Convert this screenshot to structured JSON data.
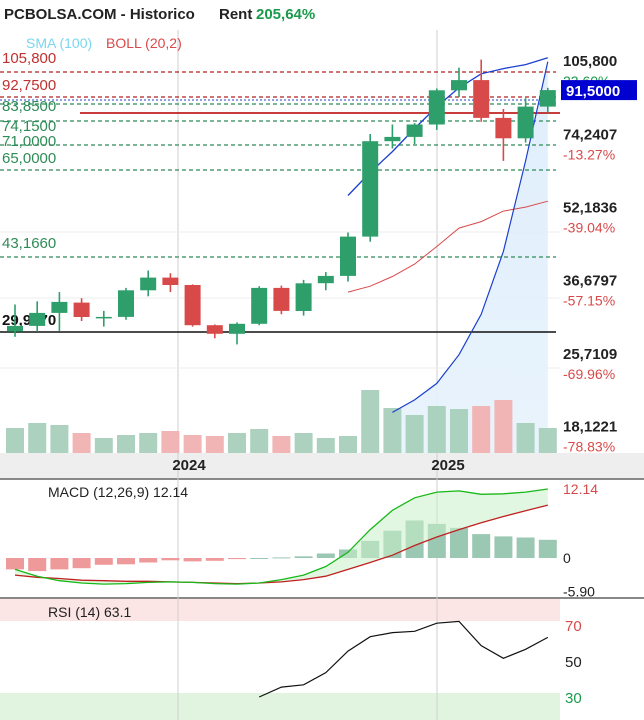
{
  "header": {
    "site": "PCBOLSA.COM - Historico",
    "rent_label": "Rent",
    "rent_value": "205,64%"
  },
  "legend": {
    "sma": "SMA (100)",
    "boll": "BOLL (20,2)"
  },
  "colors": {
    "up": "#2e9e6a",
    "down": "#d84a4a",
    "sma": "#1a3fd0",
    "boll": "#d84a4a",
    "macd_line": "#18b818",
    "signal_line": "#c02020",
    "green_text": "#1a9a4a",
    "red_text": "#d84a4a",
    "price_badge": "#0000d0"
  },
  "price_axis": {
    "labels": [
      "105,800",
      "74,2407",
      "52,1836",
      "36,6797",
      "25,7109",
      "18,1221"
    ],
    "percents": [
      "23.60%",
      "-13.27%",
      "-39.04%",
      "-57.15%",
      "-69.96%",
      "-78.83%"
    ],
    "current_price": "91,5000"
  },
  "levels": [
    {
      "label": "105,800",
      "style": "red-dash"
    },
    {
      "label": "92,7500",
      "style": "red-dash"
    },
    {
      "label": "83,8500",
      "style": "green-dash"
    },
    {
      "label": "74,1500",
      "style": "green-dash"
    },
    {
      "label": "71,0000",
      "style": "green-dash"
    },
    {
      "label": "65,0000",
      "style": "green-dash"
    },
    {
      "label": "43,1660",
      "style": "green-dash"
    },
    {
      "label": "29,9370",
      "style": "black-solid"
    }
  ],
  "time_axis": {
    "labels": [
      "2024",
      "2025"
    ]
  },
  "chart_data": {
    "type": "candlestick",
    "interval": "monthly",
    "y_scale": "log",
    "candles": [
      {
        "o": 28.5,
        "h": 32.5,
        "l": 27.8,
        "c": 29.3,
        "v": 0.25
      },
      {
        "o": 29.3,
        "h": 33.0,
        "l": 28.5,
        "c": 31.2,
        "v": 0.3
      },
      {
        "o": 31.2,
        "h": 34.5,
        "l": 28.6,
        "c": 32.9,
        "v": 0.28
      },
      {
        "o": 32.8,
        "h": 33.5,
        "l": 30.0,
        "c": 30.6,
        "v": 0.2
      },
      {
        "o": 30.6,
        "h": 31.5,
        "l": 29.2,
        "c": 30.6,
        "v": 0.15
      },
      {
        "o": 30.6,
        "h": 35.2,
        "l": 30.2,
        "c": 34.8,
        "v": 0.18
      },
      {
        "o": 34.8,
        "h": 38.3,
        "l": 33.8,
        "c": 37.0,
        "v": 0.2
      },
      {
        "o": 37.0,
        "h": 37.8,
        "l": 34.5,
        "c": 35.7,
        "v": 0.22
      },
      {
        "o": 35.7,
        "h": 35.8,
        "l": 29.2,
        "c": 29.4,
        "v": 0.18
      },
      {
        "o": 29.4,
        "h": 29.5,
        "l": 27.6,
        "c": 28.2,
        "v": 0.17
      },
      {
        "o": 28.2,
        "h": 29.8,
        "l": 26.8,
        "c": 29.6,
        "v": 0.2
      },
      {
        "o": 29.6,
        "h": 35.5,
        "l": 29.4,
        "c": 35.2,
        "v": 0.24
      },
      {
        "o": 35.2,
        "h": 35.6,
        "l": 31.0,
        "c": 31.5,
        "v": 0.17
      },
      {
        "o": 31.5,
        "h": 36.6,
        "l": 30.8,
        "c": 36.0,
        "v": 0.2
      },
      {
        "o": 36.0,
        "h": 38.0,
        "l": 34.8,
        "c": 37.3,
        "v": 0.15
      },
      {
        "o": 37.3,
        "h": 46.0,
        "l": 36.3,
        "c": 45.1,
        "v": 0.17
      },
      {
        "o": 45.1,
        "h": 74.0,
        "l": 44.0,
        "c": 71.5,
        "v": 0.63
      },
      {
        "o": 71.5,
        "h": 77.5,
        "l": 69.0,
        "c": 73.0,
        "v": 0.45
      },
      {
        "o": 73.0,
        "h": 78.0,
        "l": 70.5,
        "c": 77.5,
        "v": 0.38
      },
      {
        "o": 77.5,
        "h": 92.2,
        "l": 75.5,
        "c": 91.4,
        "v": 0.47
      },
      {
        "o": 91.4,
        "h": 102.0,
        "l": 88.5,
        "c": 96.0,
        "v": 0.44
      },
      {
        "o": 96.0,
        "h": 106.0,
        "l": 78.5,
        "c": 80.0,
        "v": 0.47
      },
      {
        "o": 80.0,
        "h": 83.5,
        "l": 65.0,
        "c": 72.5,
        "v": 0.53
      },
      {
        "o": 72.5,
        "h": 88.0,
        "l": 71.0,
        "c": 84.5,
        "v": 0.3
      },
      {
        "o": 84.5,
        "h": 92.5,
        "l": 82.0,
        "c": 91.5,
        "v": 0.25
      }
    ],
    "sma_100": [
      [
        17,
        19.3
      ],
      [
        18,
        20.5
      ],
      [
        19,
        22.2
      ],
      [
        20,
        25.5
      ],
      [
        21,
        31.0
      ],
      [
        22,
        42.0
      ],
      [
        23,
        65.0
      ],
      [
        24,
        105.0
      ]
    ],
    "boll_lower": [
      [
        15,
        34.5
      ],
      [
        16,
        35.5
      ],
      [
        17,
        37.2
      ],
      [
        18,
        39.5
      ],
      [
        19,
        43.0
      ],
      [
        20,
        47.0
      ],
      [
        21,
        48.5
      ],
      [
        22,
        51.0
      ],
      [
        23,
        52.0
      ],
      [
        24,
        53.5
      ]
    ],
    "boll_upper": [
      [
        15,
        55.0
      ],
      [
        16,
        61.5
      ],
      [
        17,
        68.0
      ],
      [
        18,
        76.0
      ],
      [
        19,
        84.5
      ],
      [
        20,
        92.5
      ],
      [
        21,
        99.0
      ],
      [
        22,
        101.5
      ],
      [
        23,
        103.5
      ],
      [
        24,
        107.0
      ]
    ],
    "macd": {
      "title": "MACD (12,26,9) 12.14",
      "last_value": "12.14",
      "axis_labels": [
        "12.14",
        "0",
        "-5.90"
      ],
      "hist": [
        -2.0,
        -2.3,
        -2.0,
        -1.8,
        -1.2,
        -1.1,
        -0.8,
        -0.4,
        -0.6,
        -0.5,
        -0.2,
        0.0,
        0.1,
        0.3,
        0.8,
        1.5,
        3.0,
        4.8,
        6.6,
        6.0,
        5.3,
        4.2,
        3.8,
        3.6,
        3.2
      ],
      "macd_line": [
        -2.0,
        -3.2,
        -4.0,
        -4.4,
        -4.6,
        -4.5,
        -4.3,
        -4.2,
        -4.3,
        -4.5,
        -4.6,
        -4.4,
        -3.8,
        -3.0,
        -1.5,
        1.0,
        5.0,
        8.4,
        10.6,
        11.6,
        11.8,
        11.2,
        11.3,
        11.6,
        12.14
      ],
      "signal_line": [
        -3.0,
        -3.4,
        -3.6,
        -3.9,
        -4.0,
        -4.1,
        -4.1,
        -4.2,
        -4.3,
        -4.4,
        -4.5,
        -4.4,
        -4.2,
        -3.8,
        -3.2,
        -2.0,
        -0.8,
        0.5,
        2.2,
        3.7,
        5.0,
        6.2,
        7.3,
        8.3,
        9.3
      ]
    },
    "rsi": {
      "title": "RSI (14) 63.1",
      "axis_labels": [
        "70",
        "50",
        "30"
      ],
      "values": [
        [
          11,
          30.0
        ],
        [
          12,
          35.5
        ],
        [
          13,
          36.8
        ],
        [
          14,
          43.5
        ],
        [
          15,
          55.5
        ],
        [
          16,
          63.5
        ],
        [
          17,
          65.8
        ],
        [
          18,
          66.5
        ],
        [
          19,
          71.0
        ],
        [
          20,
          72.0
        ],
        [
          21,
          58.5
        ],
        [
          22,
          51.5
        ],
        [
          23,
          56.5
        ],
        [
          24,
          63.1
        ]
      ]
    }
  }
}
